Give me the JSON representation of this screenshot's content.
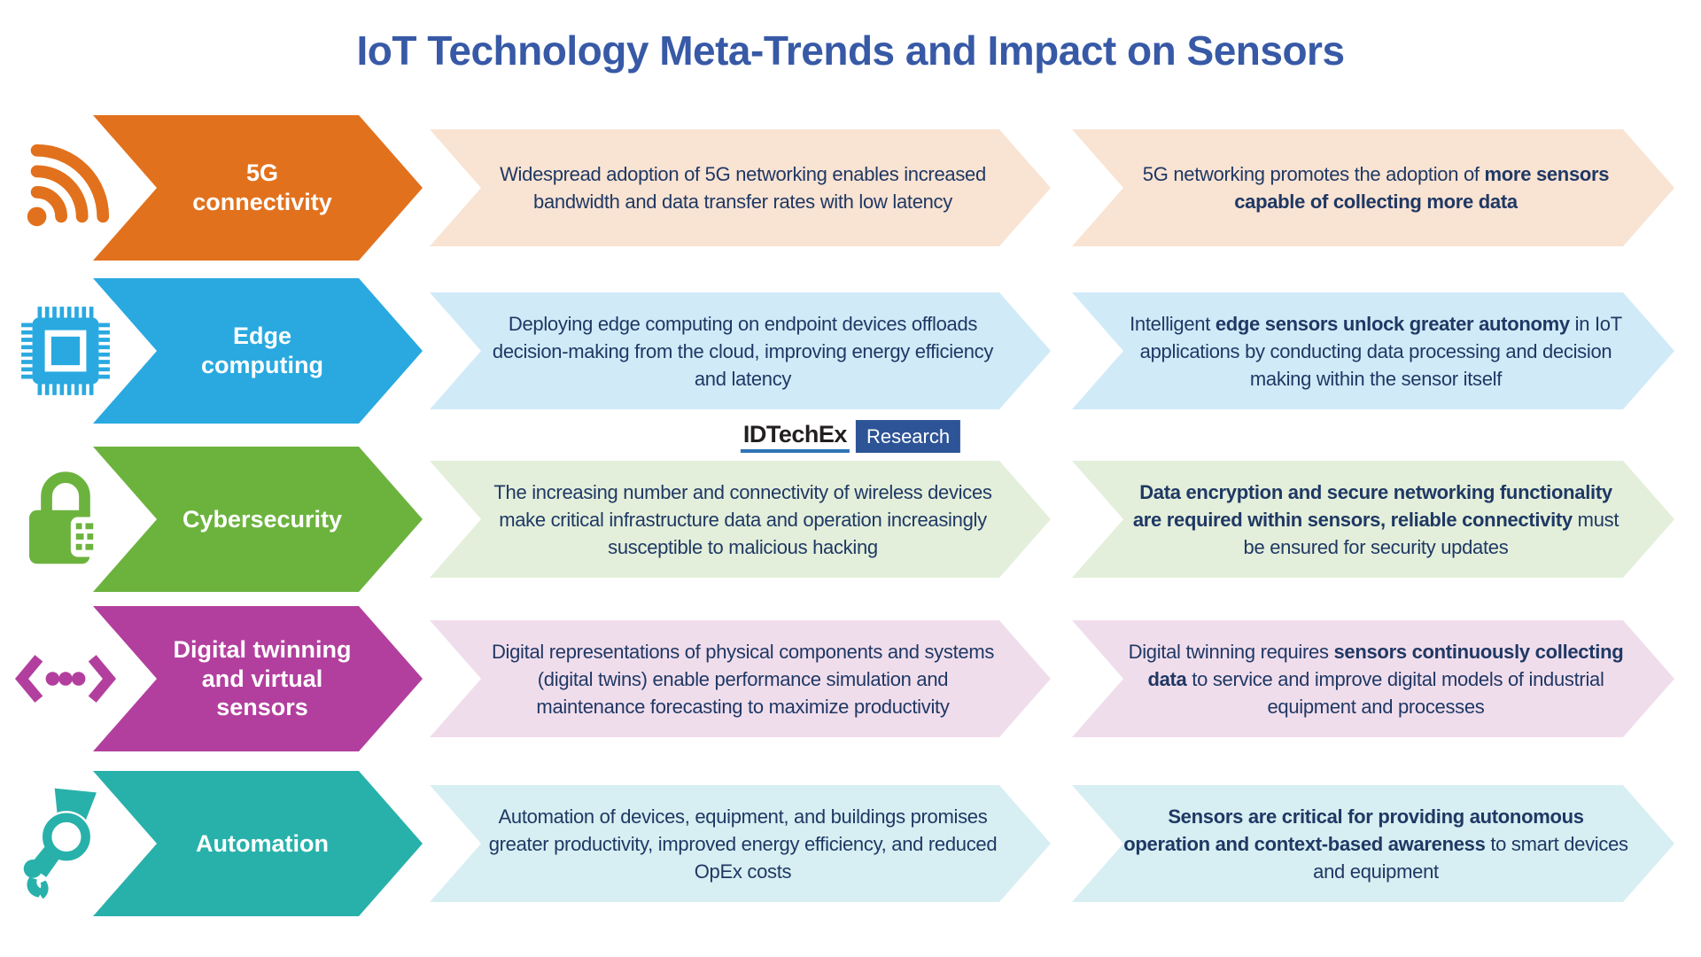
{
  "title": "IoT Technology Meta-Trends and Impact on Sensors",
  "logo": {
    "brand": "IDTechEx",
    "label": "Research"
  },
  "colors": {
    "title": "#3759A6",
    "body_text": "#1F3864",
    "logo_underline": "#2E74B5",
    "logo_box": "#2D5496"
  },
  "columns": [
    "trend",
    "trend description",
    "impact on sensors"
  ],
  "rows": [
    {
      "icon": "wifi-icon",
      "label": "5G\nconnectivity",
      "color": "#E2711D",
      "light_color": "#F9E3D2",
      "trend": "Widespread adoption of 5G networking enables increased bandwidth and data transfer rates with low latency",
      "impact": [
        {
          "t": "5G networking promotes the adoption of ",
          "b": false
        },
        {
          "t": "more sensors capable of collecting more data",
          "b": true
        }
      ]
    },
    {
      "icon": "chip-icon",
      "label": "Edge\ncomputing",
      "color": "#29A9E0",
      "light_color": "#D0EAF8",
      "trend": "Deploying edge computing on endpoint devices offloads decision-making from the cloud, improving energy efficiency and latency",
      "impact": [
        {
          "t": "Intelligent ",
          "b": false
        },
        {
          "t": "edge sensors unlock greater autonomy",
          "b": true
        },
        {
          "t": " in IoT applications by conducting data processing and decision making within the sensor itself",
          "b": false
        }
      ]
    },
    {
      "icon": "padlock-icon",
      "label": "Cybersecurity",
      "color": "#6CB33E",
      "light_color": "#E3EFDA",
      "trend": "The increasing number and connectivity of wireless devices make critical infrastructure data and operation increasingly susceptible to malicious hacking",
      "impact": [
        {
          "t": "Data encryption and secure networking functionality are required within sensors, reliable connectivity",
          "b": true
        },
        {
          "t": " must be ensured for security updates",
          "b": false
        }
      ]
    },
    {
      "icon": "digital-twin-icon",
      "label": "Digital twinning\nand virtual\nsensors",
      "color": "#B23F9E",
      "light_color": "#F0DDEC",
      "trend": "Digital representations of physical components and systems (digital twins) enable performance simulation and maintenance forecasting to maximize productivity",
      "impact": [
        {
          "t": "Digital twinning requires ",
          "b": false
        },
        {
          "t": "sensors continuously collecting data",
          "b": true
        },
        {
          "t": " to service and improve digital models of industrial equipment and processes",
          "b": false
        }
      ]
    },
    {
      "icon": "robot-arm-icon",
      "label": "Automation",
      "color": "#28B1AA",
      "light_color": "#D7EFF2",
      "trend": "Automation of devices, equipment, and buildings promises greater productivity, improved energy efficiency, and reduced OpEx costs",
      "impact": [
        {
          "t": "Sensors are critical for providing autonomous operation and context-based awareness",
          "b": true
        },
        {
          "t": " to smart devices and equipment",
          "b": false
        }
      ]
    }
  ]
}
